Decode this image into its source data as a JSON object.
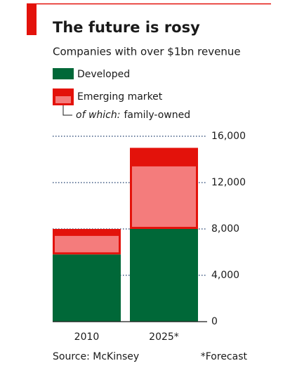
{
  "chart_data": {
    "type": "bar",
    "title": "The future is rosy",
    "subtitle": "Companies with over $1bn revenue",
    "categories": [
      "2010",
      "2025*"
    ],
    "series": [
      {
        "name": "Developed",
        "color": "#006838",
        "values": [
          5800,
          8000
        ]
      },
      {
        "name": "Emerging market",
        "color": "#e3120b",
        "values": [
          2200,
          7000
        ]
      },
      {
        "name": "family-owned",
        "color": "#f47c7c",
        "values": [
          1600,
          5400
        ],
        "subset_of": "Emerging market"
      }
    ],
    "subset_prefix": "of which:",
    "ylim": [
      0,
      16000
    ],
    "yticks": [
      0,
      {
        "value": 4000,
        "label": "4,000"
      },
      {
        "value": 8000,
        "label": "8,000"
      },
      {
        "value": 12000,
        "label": "12,000"
      },
      {
        "value": 16000,
        "label": "16,000"
      }
    ],
    "grid": true,
    "source": "Source: McKinsey",
    "note": "*Forecast"
  }
}
